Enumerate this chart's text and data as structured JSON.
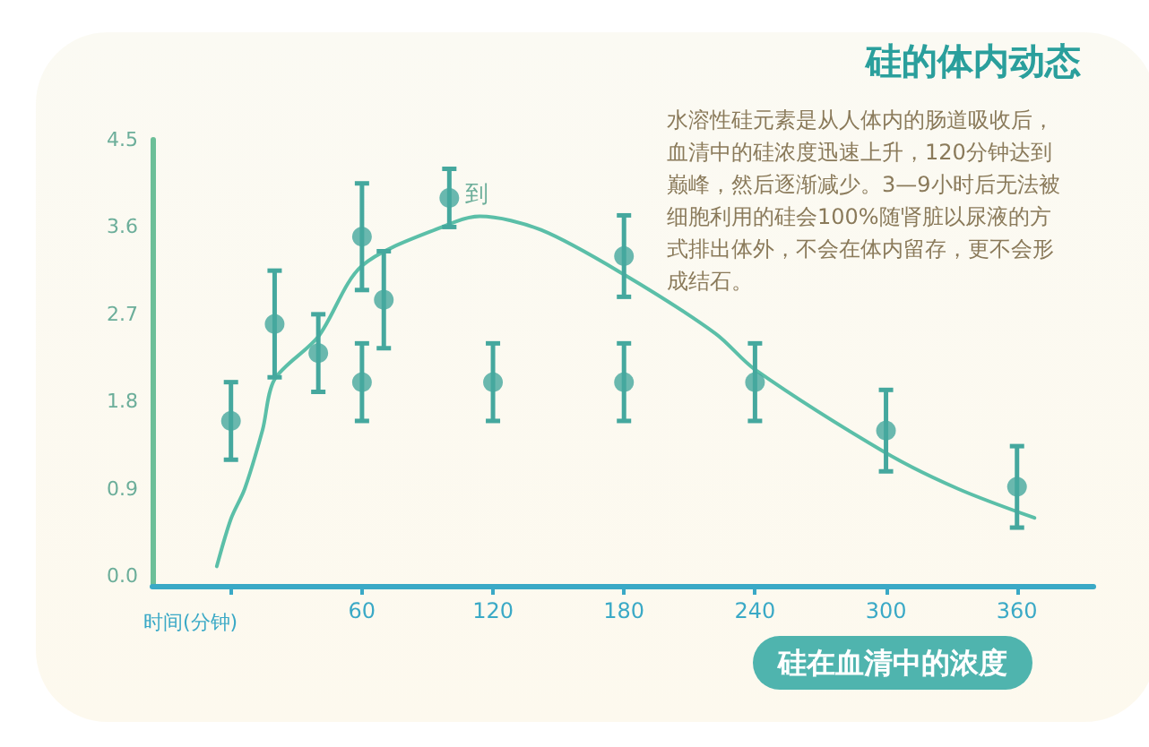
{
  "chart_data": {
    "type": "scatter",
    "title": "硅的体内动态",
    "xlabel": "时间(分钟)",
    "subtitle": "硅在血清中的浓度",
    "annotations": [
      {
        "text": "到",
        "x": 100,
        "y": 3.9
      },
      "水溶性硅元素是从人体内的肠道吸收后，血清中的硅浓度迅速上升，120分钟达到巅峰，然后逐渐减少。3—9小时后无法被细胞利用的硅会100%随肾脏以尿液的方式排出体外，不会在体内留存，更不会形成结石。"
    ],
    "series": [
      {
        "color": "#45a89e",
        "x": [
          0,
          20,
          40,
          60,
          60,
          70,
          100,
          120,
          180,
          180,
          240,
          300,
          360
        ],
        "values": [
          1.6,
          2.6,
          2.3,
          3.5,
          2.0,
          2.85,
          3.9,
          2.0,
          3.3,
          2.0,
          2.0,
          1.5,
          0.92
        ],
        "errors": [
          0.4,
          0.55,
          0.4,
          0.55,
          0.4,
          0.5,
          0.3,
          0.4,
          0.42,
          0.4,
          0.4,
          0.42,
          0.42
        ]
      },
      {
        "type": "line",
        "color": "#5bbfa8",
        "marker": "none",
        "x": [
          -6.5,
          0,
          6.3,
          14.5,
          20,
          40,
          60,
          100,
          114,
          142,
          180,
          222,
          240,
          300,
          333,
          368
        ],
        "values": [
          0.1,
          0.59,
          0.9,
          1.51,
          2.03,
          2.47,
          3.2,
          3.63,
          3.71,
          3.57,
          3.11,
          2.5,
          2.13,
          1.27,
          0.9,
          0.6
        ]
      }
    ],
    "marker": "circle",
    "xlim": [
      -36,
      395
    ],
    "xticks": [
      {
        "value": 0,
        "label": null
      },
      60,
      120,
      180,
      240,
      300,
      360
    ],
    "ylim": [
      -0.1,
      4.5
    ],
    "yticks": [
      {
        "value": 0,
        "label": "0.0"
      },
      0.9,
      1.8,
      2.7,
      3.6,
      4.5
    ],
    "grid": false
  }
}
